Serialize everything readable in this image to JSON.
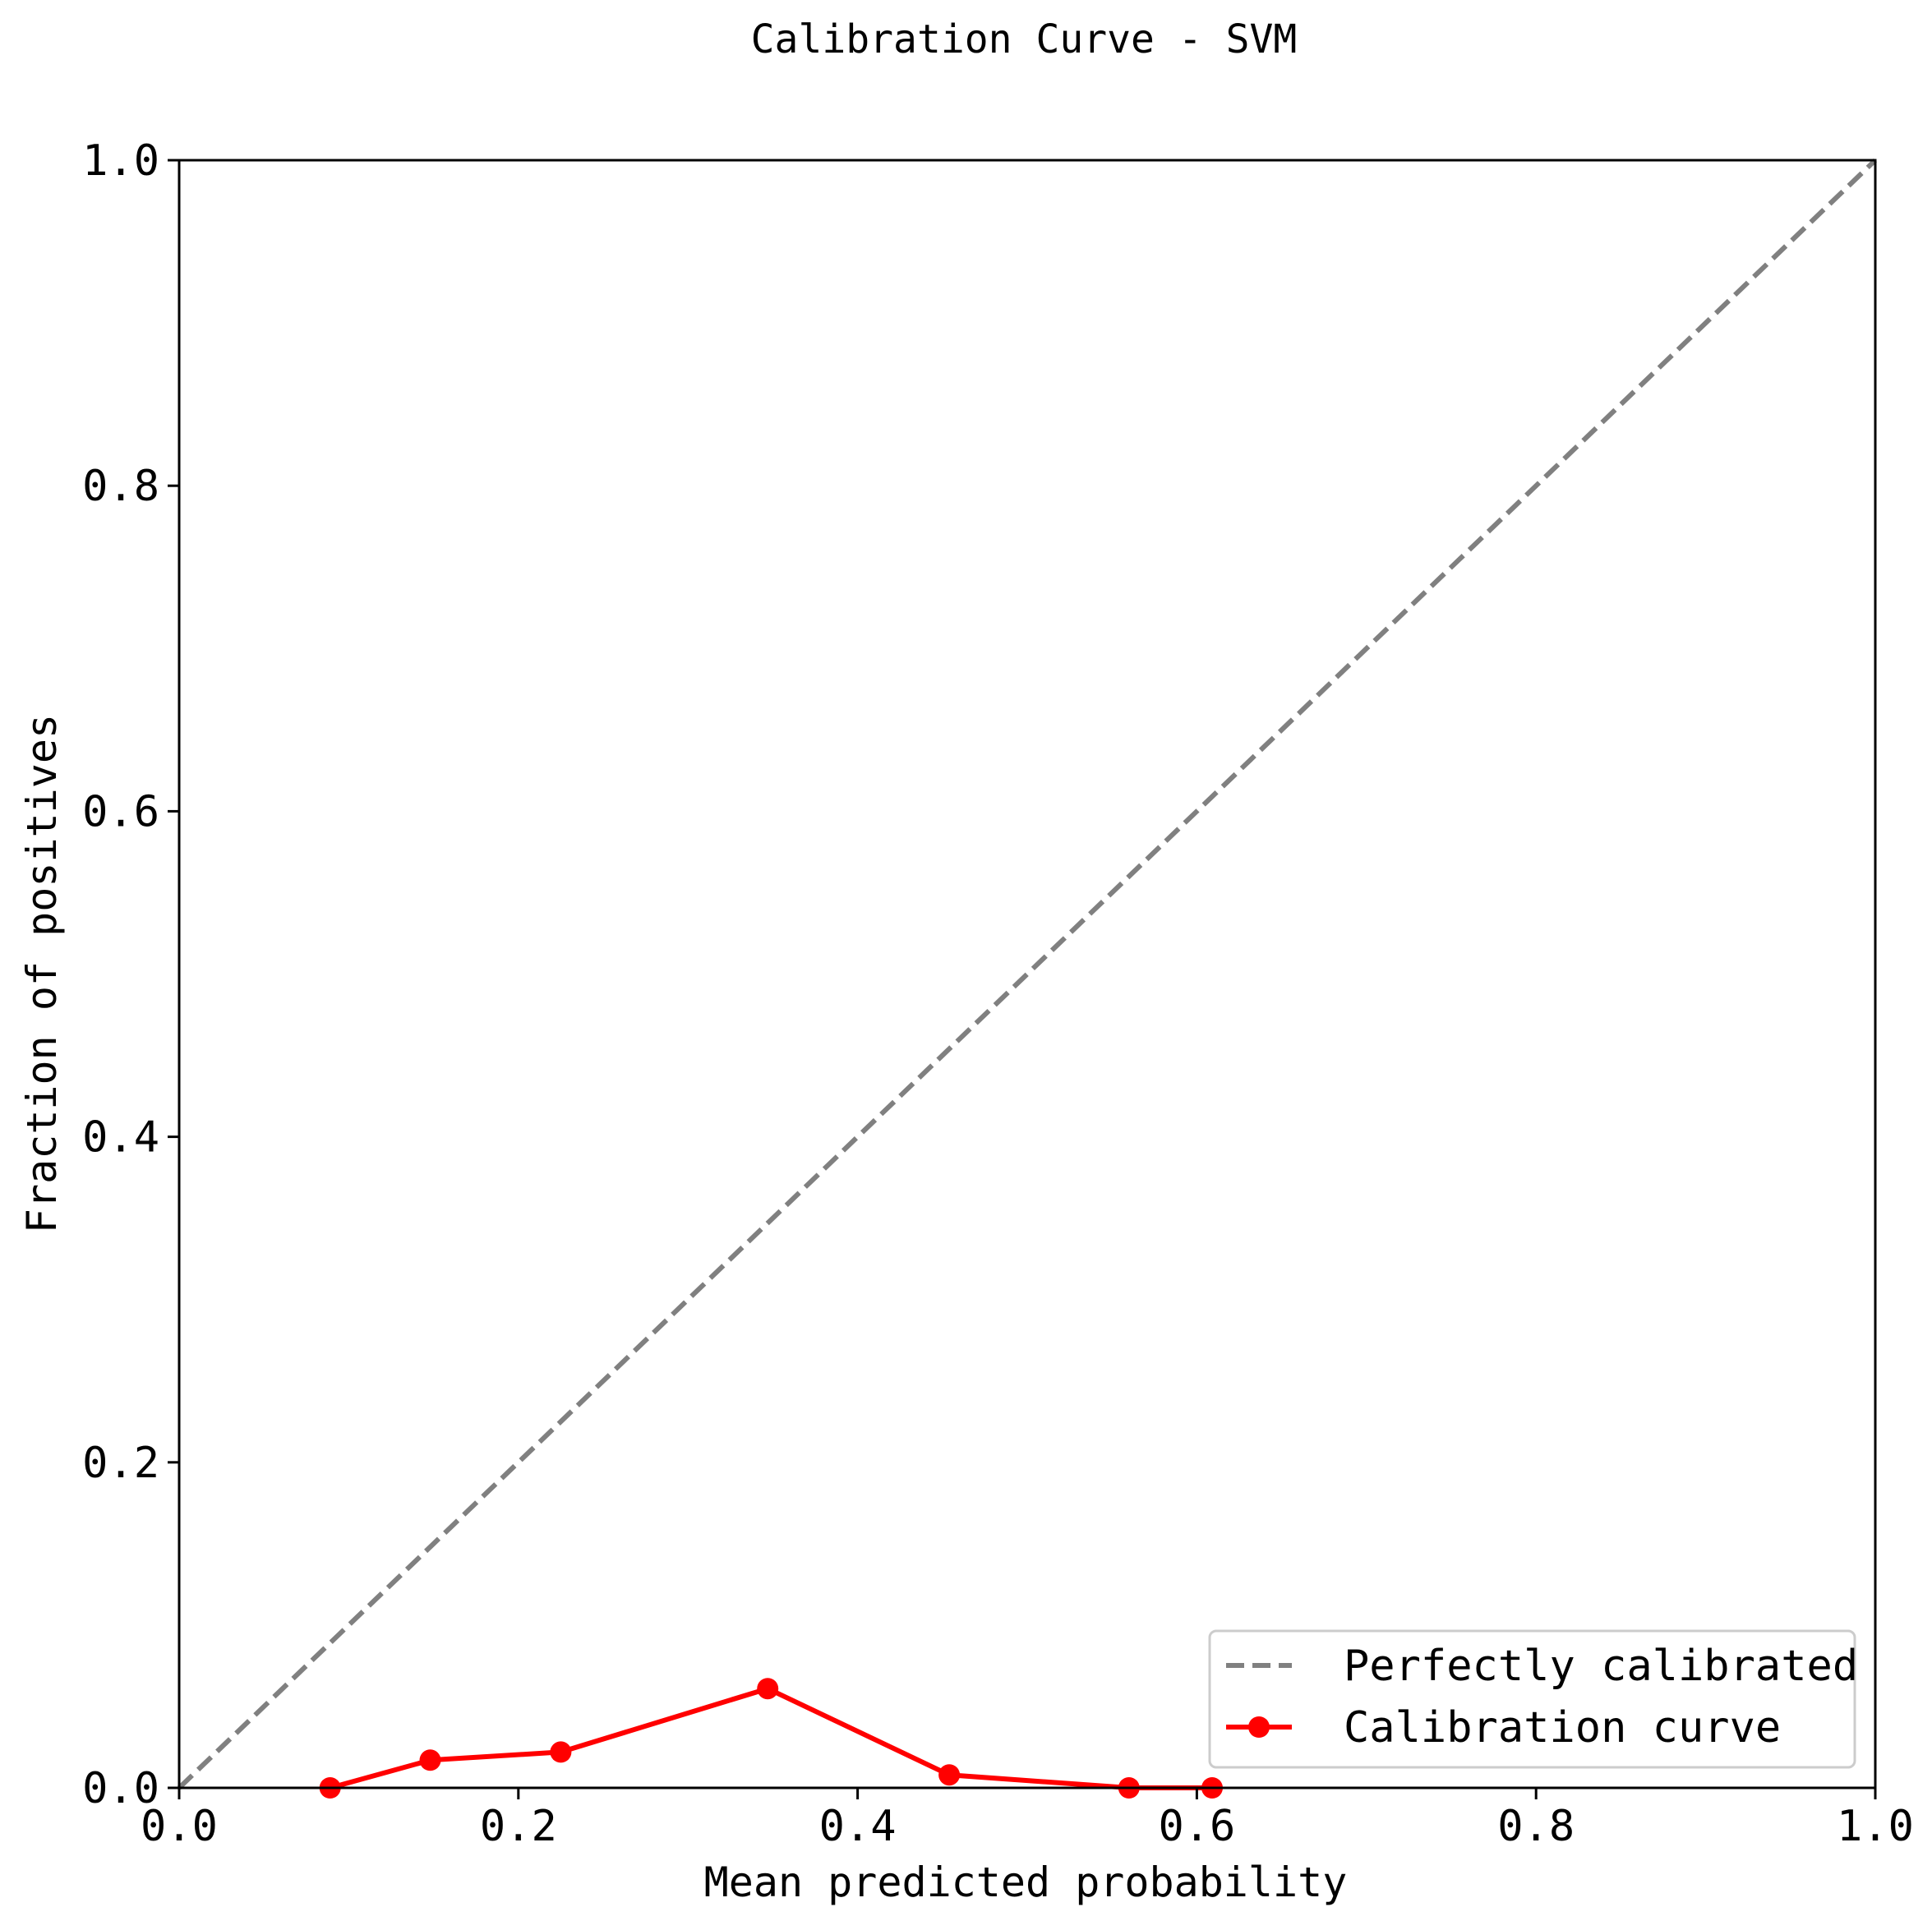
{
  "chart_data": {
    "type": "line",
    "title": "Calibration Curve - SVM",
    "xlabel": "Mean predicted probability",
    "ylabel": "Fraction of positives",
    "xlim": [
      0.0,
      1.0
    ],
    "ylim": [
      0.0,
      1.0
    ],
    "xticks": [
      "0.0",
      "0.2",
      "0.4",
      "0.6",
      "0.8",
      "1.0"
    ],
    "yticks": [
      "0.0",
      "0.2",
      "0.4",
      "0.6",
      "0.8",
      "1.0"
    ],
    "grid": false,
    "legend_position": "lower-right",
    "series": [
      {
        "name": "Perfectly calibrated",
        "style": "dashed",
        "color": "#808080",
        "x": [
          0.0,
          1.0
        ],
        "y": [
          0.0,
          1.0
        ]
      },
      {
        "name": "Calibration curve",
        "style": "solid-with-markers",
        "color": "#ff0000",
        "x": [
          0.089,
          0.148,
          0.225,
          0.347,
          0.454,
          0.56,
          0.609
        ],
        "y": [
          0.0,
          0.017,
          0.022,
          0.061,
          0.008,
          0.0,
          0.0
        ]
      }
    ]
  }
}
